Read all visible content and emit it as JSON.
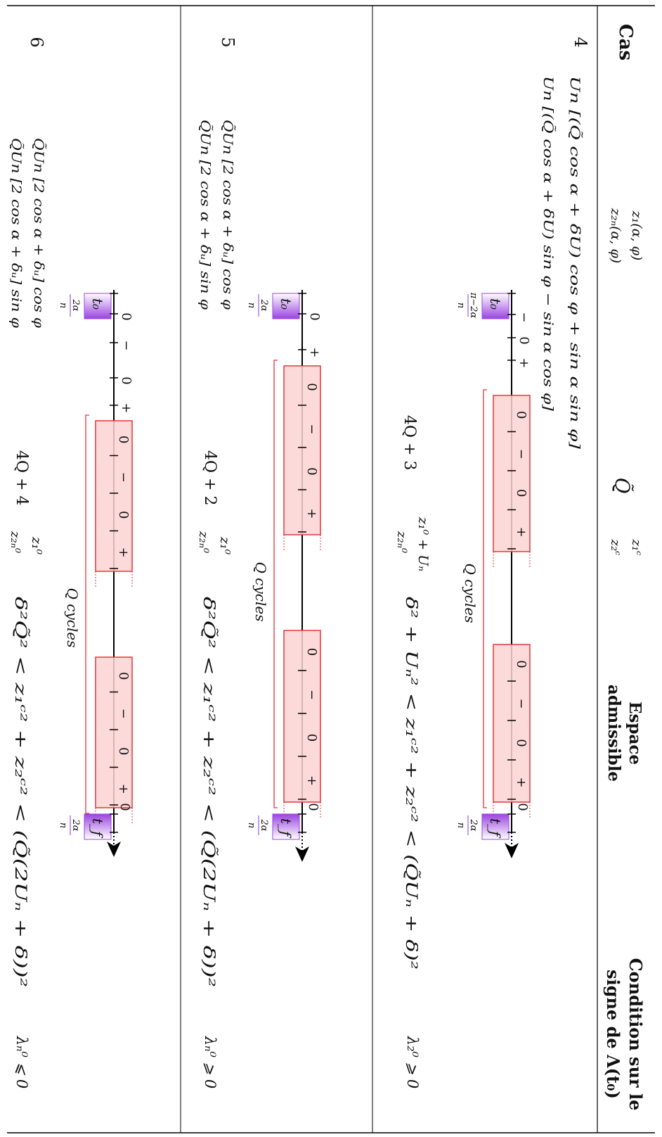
{
  "header": {
    "col_cas": "Cas",
    "col_z": [
      "z₁(α, φ)",
      "z₂ₙ(α, φ)"
    ],
    "col_q": "Q̃",
    "col_zc": [
      "z₁ᶜ",
      "z₂ᶜ"
    ],
    "col_espace": [
      "Espace",
      "admissible"
    ],
    "col_condition": [
      "Condition sur le",
      "signe de  Λ(t₀)"
    ]
  },
  "rows": [
    {
      "cas": "4",
      "z_expr": [
        "Un [(Q̃ cos α + δU) cos φ + sin α sin φ]",
        "Un [(Q̃ cos α + δU) sin φ − sin α cos φ]"
      ],
      "q_value": "4Q + 3",
      "zc_value": [
        "z₁⁰ + Uₙ",
        "z₂ₙ⁰"
      ],
      "espace_expr": "δ² + Uₙ² < z₁ᶜ² + z₂ᶜ² < (Q̃Uₙ + δ)²",
      "condition": "λ₂⁰ ⩾ 0",
      "timeline": {
        "t0_label": "t₀",
        "t0_frac": "π−2α",
        "tf_label": "t_f",
        "tf_frac": "2α",
        "frac_den": "n",
        "pre_signs": [
          "−",
          "0",
          "+"
        ],
        "box1_signs": [
          "0",
          "−",
          "0",
          "+"
        ],
        "box2_signs": [
          "0",
          "−",
          "0",
          "+"
        ],
        "end_sign": "0",
        "cycles_label": "Q cycles"
      }
    },
    {
      "cas": "5",
      "z_expr": [
        "Q̃Un [2 cos α + δᵤ] cos φ",
        "Q̃Un [2 cos α + δᵤ] sin φ"
      ],
      "q_value": "4Q + 2",
      "zc_value": [
        "z₁⁰",
        "z₂ₙ⁰"
      ],
      "espace_expr": "δ²Q̃² < z₁ᶜ² + z₂ᶜ² < (Q̃(2Uₙ + δ))²",
      "condition": "λₙ⁰ ⩾ 0",
      "timeline": {
        "t0_label": "t₀",
        "t0_frac": "2α",
        "tf_label": "t_f",
        "tf_frac": "2α",
        "frac_den": "n",
        "pre_signs": [
          "0",
          "+"
        ],
        "box1_signs": [
          "0",
          "−",
          "0",
          "+"
        ],
        "box2_signs": [
          "0",
          "−",
          "0",
          "+"
        ],
        "end_sign": "0",
        "cycles_label": "Q cycles"
      }
    },
    {
      "cas": "6",
      "z_expr": [
        "Q̃Un [2 cos α + δᵤ] cos φ",
        "Q̃Un [2 cos α + δᵤ] sin φ"
      ],
      "q_value": "4Q + 4",
      "zc_value": [
        "z₁⁰",
        "z₂ₙ⁰"
      ],
      "espace_expr": "δ²Q̃² < z₁ᶜ² + z₂ᶜ² < (Q̃(2Uₙ + δ))²",
      "condition": "λₙ⁰ ⩽ 0",
      "timeline": {
        "t0_label": "t₀",
        "t0_frac": "2α",
        "tf_label": "t_f",
        "tf_frac": "2α",
        "frac_den": "n",
        "pre_signs": [
          "0",
          "−",
          "0",
          "+"
        ],
        "box1_signs": [
          "0",
          "−",
          "0",
          "+"
        ],
        "box2_signs": [
          "0",
          "−",
          "0",
          "+"
        ],
        "end_sign": "0",
        "cycles_label": "Q cycles"
      }
    }
  ],
  "colors": {
    "rule": "#000000",
    "box_fill": "#fbd3d3",
    "box_stroke": "#e4363a",
    "cycles": "#e4363a",
    "sign_green": "#7ad316",
    "t_marker_purple": "#9a44e0",
    "end_zero_blue": "#2050e8",
    "frac_purple": "#8a3bd8"
  }
}
